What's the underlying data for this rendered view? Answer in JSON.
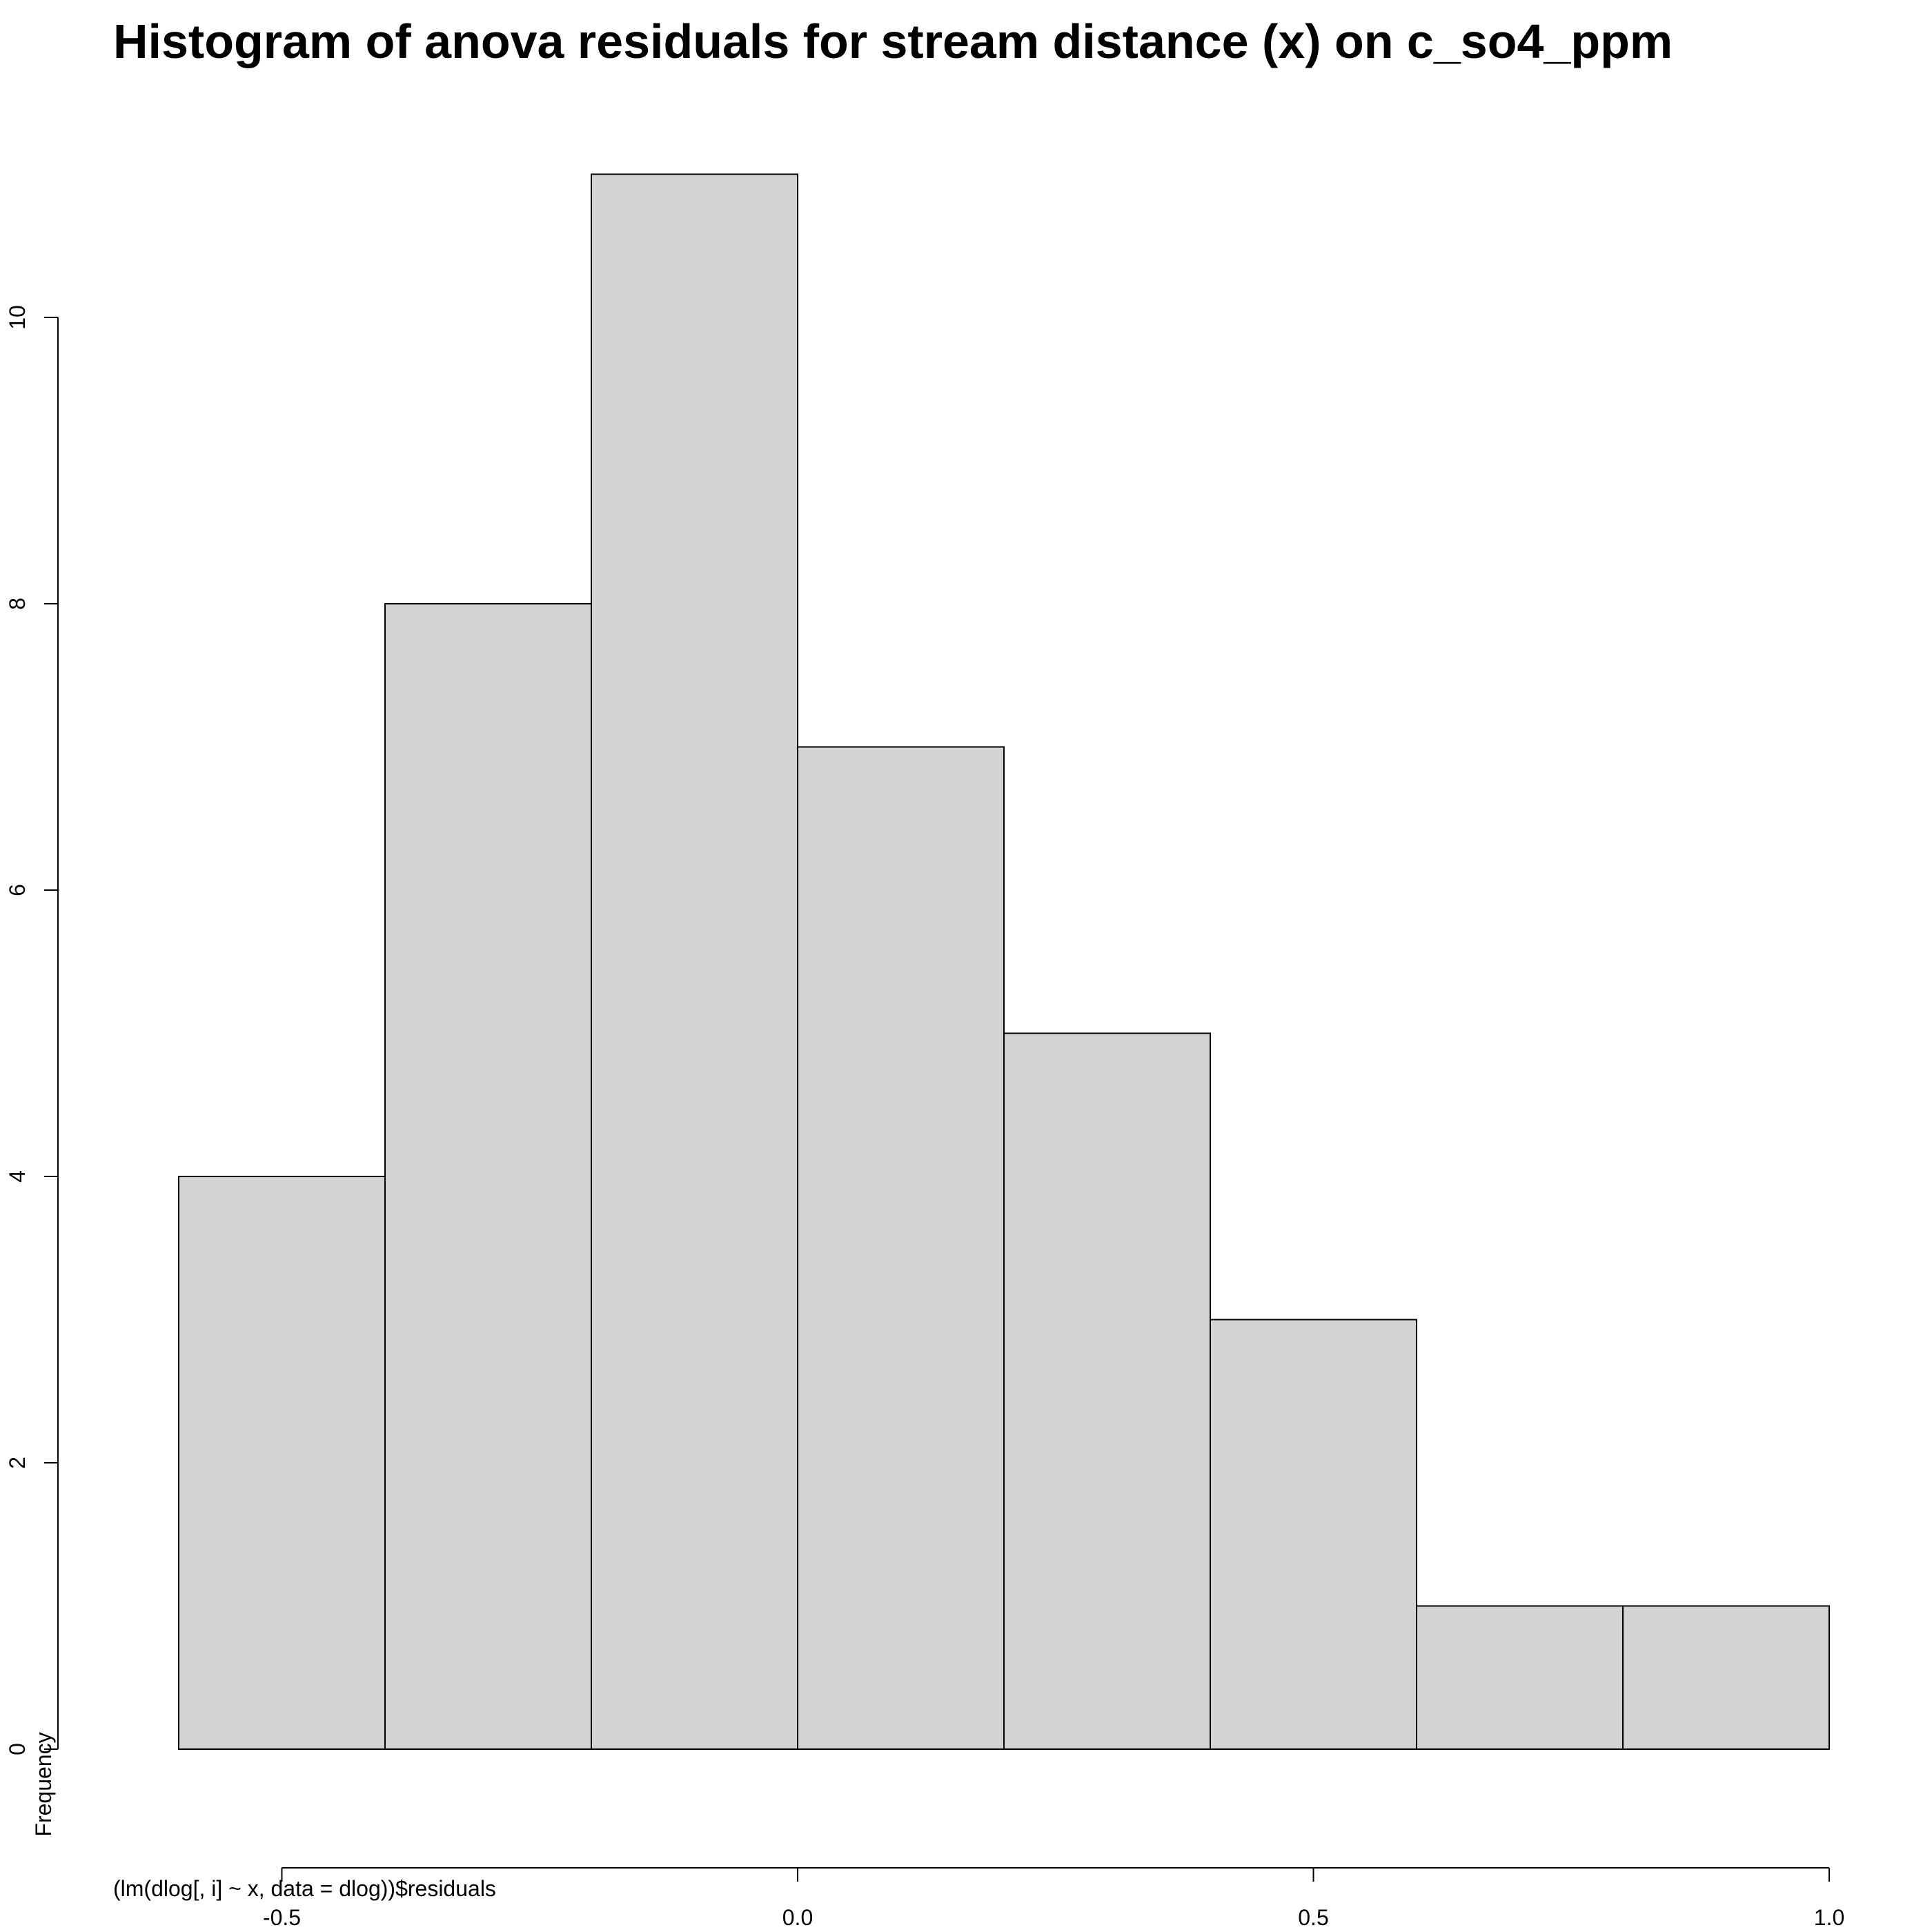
{
  "chart_data": {
    "type": "bar",
    "title": "Histogram of anova residuals for stream distance (x) on c_so4_ppm",
    "xlabel": "(lm(dlog[, i] ~ x, data = dlog))$residuals",
    "ylabel": "Frequency",
    "bins": [
      {
        "start": -0.6,
        "end": -0.4,
        "count": 4
      },
      {
        "start": -0.4,
        "end": -0.2,
        "count": 8
      },
      {
        "start": -0.2,
        "end": 0.0,
        "count": 11
      },
      {
        "start": 0.0,
        "end": 0.2,
        "count": 7
      },
      {
        "start": 0.2,
        "end": 0.4,
        "count": 5
      },
      {
        "start": 0.4,
        "end": 0.6,
        "count": 3
      },
      {
        "start": 0.6,
        "end": 0.8,
        "count": 1
      },
      {
        "start": 0.8,
        "end": 1.0,
        "count": 1
      }
    ],
    "x_ticks": [
      -0.5,
      0.0,
      0.5,
      1.0
    ],
    "x_tick_labels": [
      "-0.5",
      "0.0",
      "0.5",
      "1.0"
    ],
    "y_ticks": [
      0,
      2,
      4,
      6,
      8,
      10
    ],
    "y_tick_labels": [
      "0",
      "2",
      "4",
      "6",
      "8",
      "10"
    ],
    "xlim": [
      -0.6,
      1.0
    ],
    "ylim": [
      0,
      11
    ],
    "bar_color": "#d3d3d3",
    "grid": false,
    "legend": "none"
  }
}
